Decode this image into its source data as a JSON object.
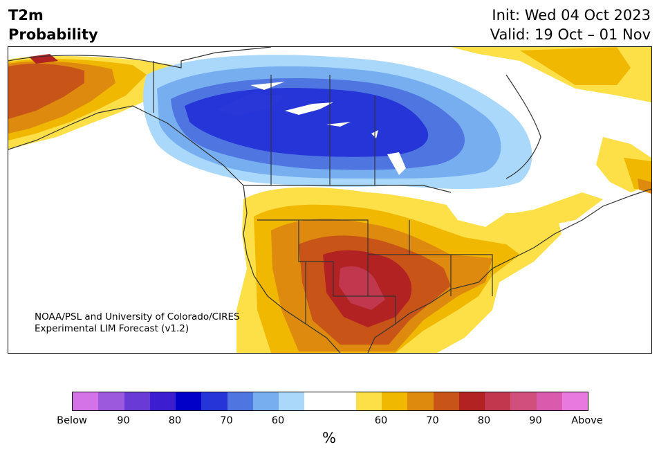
{
  "header": {
    "title_line1": "T2m",
    "title_line2": "Probability",
    "init": "Init: Wed 04 Oct 2023",
    "valid": "Valid: 19 Oct – 01 Nov"
  },
  "map": {
    "credit_line1": "NOAA/PSL and University of Colorado/CIRES",
    "credit_line2": "Experimental LIM Forecast (v1.2)"
  },
  "colorbar": {
    "colors": [
      "#d473e8",
      "#9b59de",
      "#6a3ad6",
      "#3c1ed0",
      "#0000c8",
      "#2535d8",
      "#4f75e0",
      "#76aef0",
      "#aad8fa",
      "#ffffff",
      "#ffffff",
      "#fde047",
      "#f0b800",
      "#dd8a0e",
      "#c85418",
      "#b22222",
      "#c0374e",
      "#d04f7c",
      "#da5aae",
      "#e87ade"
    ],
    "tick_labels": [
      "Below",
      "90",
      "80",
      "70",
      "60",
      "60",
      "70",
      "80",
      "90",
      "Above"
    ],
    "unit": "%"
  }
}
